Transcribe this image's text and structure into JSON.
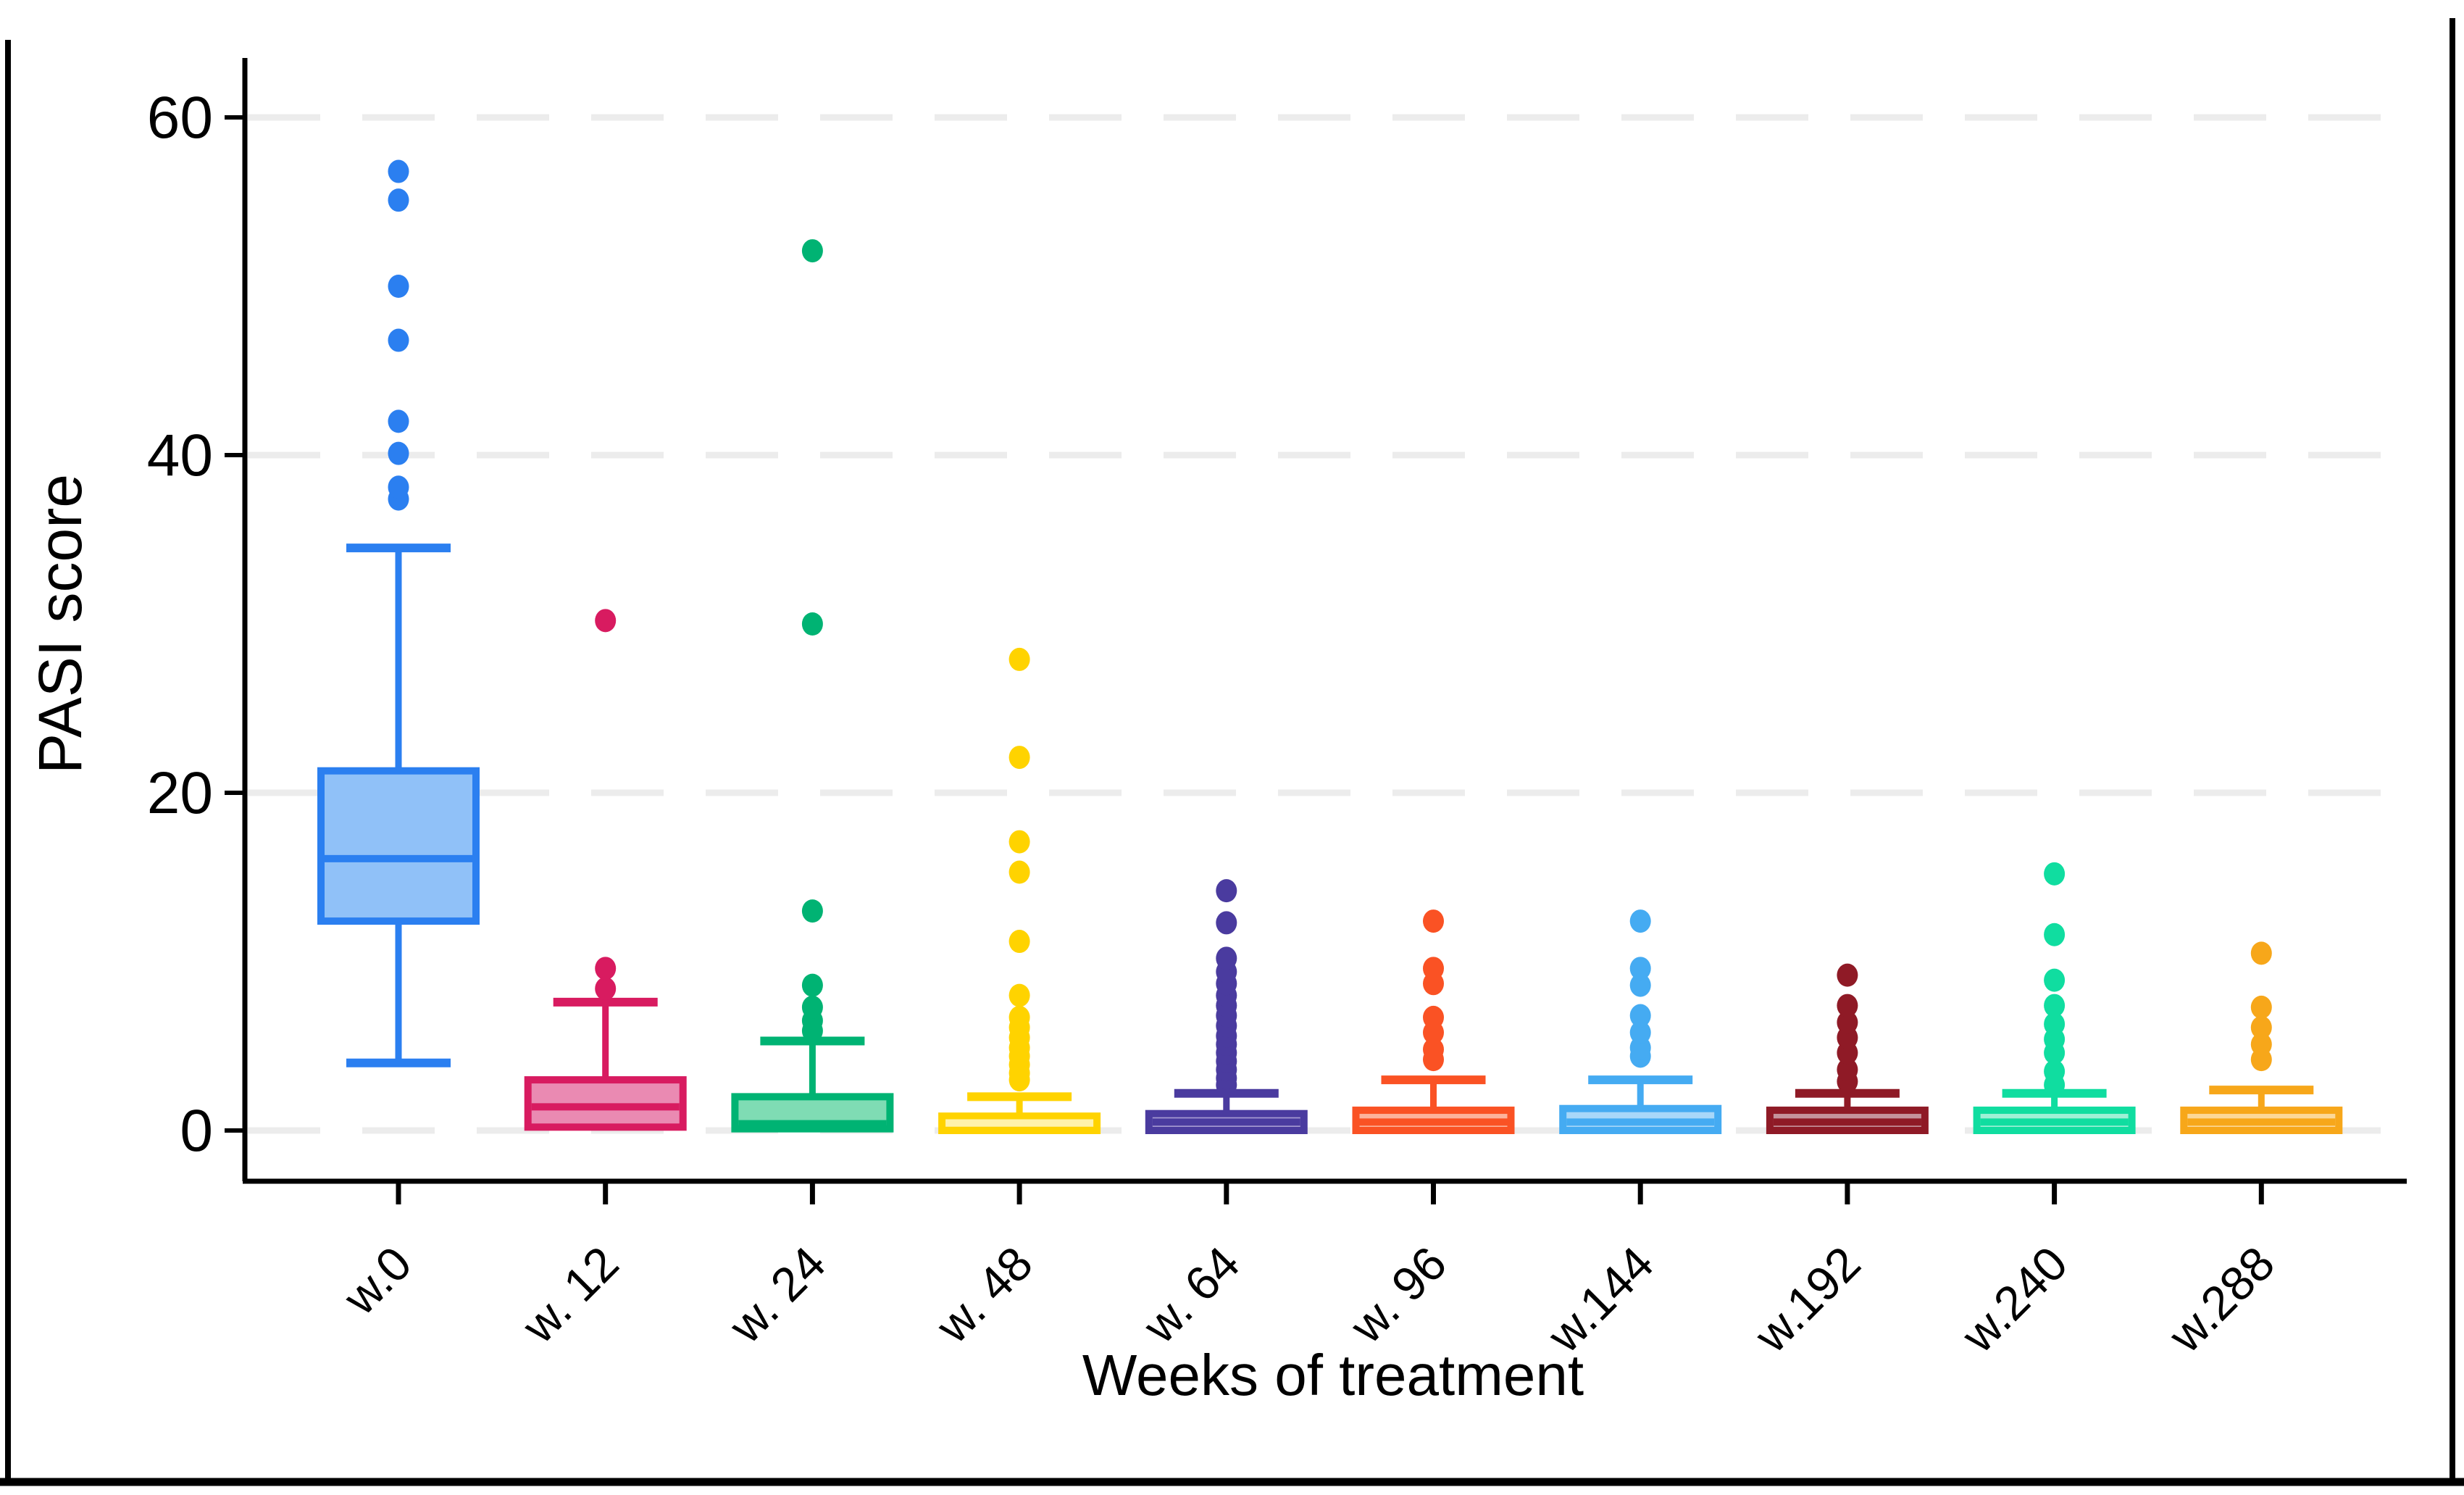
{
  "figure": {
    "y_axis_title": "PASI score",
    "x_axis_title": "Weeks of treatment",
    "y_tick_labels": [
      "0",
      "20",
      "40",
      "60"
    ]
  },
  "chart_data": {
    "type": "box",
    "title": "",
    "xlabel": "Weeks of treatment",
    "ylabel": "PASI score",
    "ylim": [
      -3,
      63
    ],
    "yticks": [
      0,
      20,
      40,
      60
    ],
    "grid": "horizontal dashed light-gray at y ticks",
    "legend": "none",
    "categories": [
      "w.0",
      "w. 12",
      "w. 24",
      "w. 48",
      "w. 64",
      "w. 96",
      "w.144",
      "w.192",
      "w.240",
      "w.288"
    ],
    "series": [
      {
        "label": "w.0",
        "stroke": "#2b7ff0",
        "fill": "#90c1f8",
        "q1": 12.4,
        "median": 16.1,
        "q3": 21.3,
        "whisker_low": 4.0,
        "whisker_high": 34.5,
        "outliers": [
          37.4,
          38.1,
          40.1,
          42.0,
          46.8,
          50.0,
          55.1,
          56.8
        ]
      },
      {
        "label": "w. 12",
        "stroke": "#d81b60",
        "fill": "#ea8ab2",
        "q1": 0.2,
        "median": 1.4,
        "q3": 3.0,
        "whisker_low": null,
        "whisker_high": 7.6,
        "outliers": [
          8.4,
          9.6,
          30.2
        ]
      },
      {
        "label": "w. 24",
        "stroke": "#00b373",
        "fill": "#7fdcb4",
        "q1": 0.1,
        "median": 0.4,
        "q3": 2.0,
        "whisker_low": null,
        "whisker_high": 5.3,
        "outliers": [
          5.9,
          6.5,
          7.3,
          8.6,
          13.0,
          30.0,
          52.1
        ]
      },
      {
        "label": "w. 48",
        "stroke": "#ffd300",
        "fill": "#ffe564",
        "median_color": "#fff2ab",
        "q1": 0,
        "median": 0.45,
        "q3": 0.85,
        "whisker_low": null,
        "whisker_high": 2.0,
        "outliers": [
          3.0,
          3.4,
          3.9,
          4.4,
          4.9,
          5.5,
          6.1,
          6.7,
          8.0,
          11.2,
          15.3,
          17.1,
          22.1,
          27.9
        ]
      },
      {
        "label": "w. 64",
        "stroke": "#4a3b9f",
        "fill": "#a79bd2",
        "q1": 0,
        "median": 0.5,
        "q3": 1.0,
        "whisker_low": null,
        "whisker_high": 2.2,
        "outliers": [
          2.7,
          3.1,
          3.6,
          4.1,
          4.6,
          5.1,
          5.6,
          6.2,
          6.8,
          7.4,
          8.0,
          8.7,
          9.4,
          10.2,
          12.3,
          14.2
        ]
      },
      {
        "label": "w. 96",
        "stroke": "#fa5224",
        "fill": "#fcb39c",
        "q1": 0,
        "median": 0.5,
        "q3": 1.2,
        "whisker_low": null,
        "whisker_high": 3.0,
        "outliers": [
          4.2,
          4.8,
          5.8,
          6.7,
          8.7,
          9.6,
          12.4
        ]
      },
      {
        "label": "w.144",
        "stroke": "#45abf2",
        "fill": "#a8d7f9",
        "q1": 0,
        "median": 0.5,
        "q3": 1.3,
        "whisker_low": null,
        "whisker_high": 3.0,
        "outliers": [
          4.4,
          4.9,
          5.8,
          6.8,
          8.6,
          9.6,
          12.4
        ]
      },
      {
        "label": "w.192",
        "stroke": "#8f1a26",
        "fill": "#c5939c",
        "q1": 0,
        "median": 0.5,
        "q3": 1.2,
        "whisker_low": null,
        "whisker_high": 2.2,
        "outliers": [
          2.9,
          3.6,
          4.6,
          5.5,
          6.4,
          7.4,
          9.2
        ]
      },
      {
        "label": "w.240",
        "stroke": "#10dda0",
        "fill": "#9ff0d6",
        "q1": 0,
        "median": 0.5,
        "q3": 1.2,
        "whisker_low": null,
        "whisker_high": 2.2,
        "outliers": [
          2.7,
          3.5,
          4.6,
          5.4,
          6.3,
          7.4,
          8.9,
          11.6,
          15.2
        ]
      },
      {
        "label": "w.288",
        "stroke": "#f7a71a",
        "fill": "#fcd898",
        "q1": 0,
        "median": 0.5,
        "q3": 1.2,
        "whisker_low": null,
        "whisker_high": 2.4,
        "outliers": [
          4.2,
          5.1,
          6.1,
          7.3,
          10.5
        ]
      }
    ]
  }
}
